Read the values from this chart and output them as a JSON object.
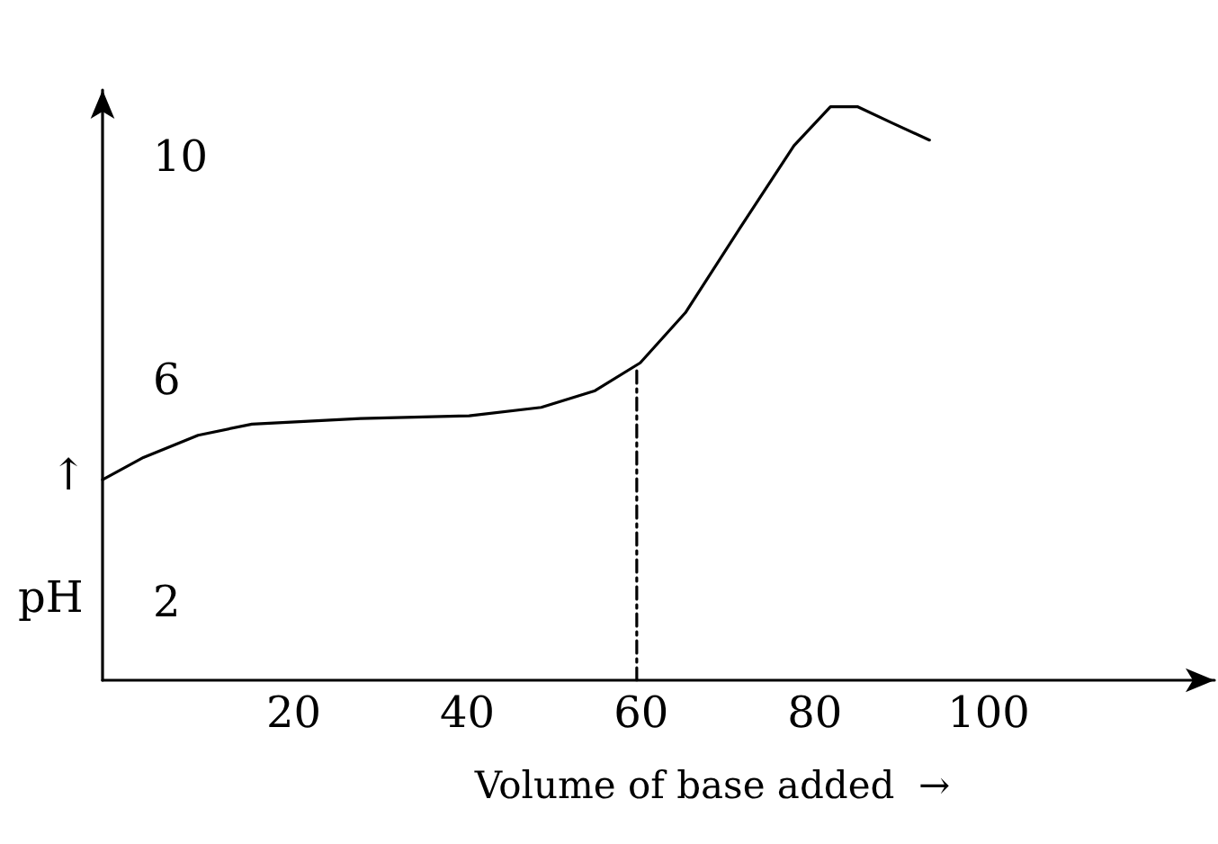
{
  "chart_data": {
    "type": "line",
    "xlabel": "Volume of base added  →",
    "ylabel": "pH",
    "annotations": [
      "↑"
    ],
    "xlim": [
      -2,
      126
    ],
    "xticks": [
      20,
      40,
      60,
      80,
      100
    ],
    "ylim": [
      0.6,
      11.2
    ],
    "yticks": [
      2,
      6,
      10
    ],
    "grid": false,
    "marker": "none",
    "series": [
      {
        "color": "#000000",
        "line_style": "solid",
        "x": [
          -2,
          2.7,
          9,
          15.2,
          27.7,
          40.2,
          48.5,
          54.7,
          59.9,
          65.1,
          71.3,
          77.6,
          81.8,
          84.9,
          89,
          93.2
        ],
        "values": [
          4.2,
          4.6,
          5.0,
          5.2,
          5.3,
          5.35,
          5.5,
          5.8,
          6.3,
          7.2,
          8.7,
          10.2,
          10.9,
          10.9,
          10.6,
          10.3
        ]
      },
      {
        "color": "#000000",
        "line_style": "dashed",
        "x": [
          59.5,
          59.5
        ],
        "values": [
          0.6,
          6.2
        ]
      }
    ]
  }
}
